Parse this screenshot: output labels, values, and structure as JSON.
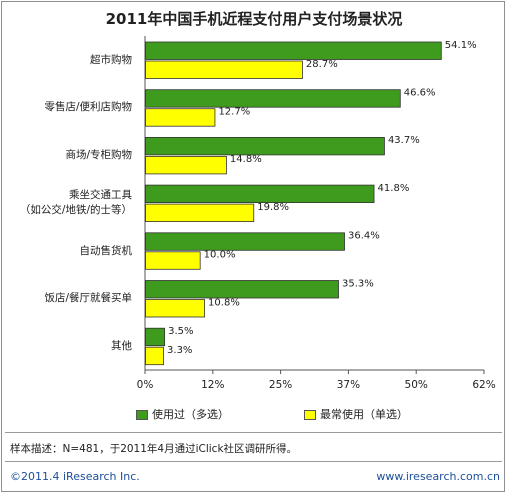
{
  "chart_data": {
    "type": "bar",
    "orientation": "horizontal",
    "title": "2011年中国手机近程支付用户支付场景状况",
    "categories": [
      [
        "超市购物"
      ],
      [
        "零售店/便利店购物"
      ],
      [
        "商场/专柜购物"
      ],
      [
        "乘坐交通工具",
        "（如公交/地铁/的士等）"
      ],
      [
        "自动售货机"
      ],
      [
        "饭店/餐厅就餐买单"
      ],
      [
        "其他"
      ]
    ],
    "series": [
      {
        "name": "使用过（多选）",
        "color": "#3e9b1e",
        "values": [
          54.1,
          46.6,
          43.7,
          41.8,
          36.4,
          35.3,
          3.5
        ]
      },
      {
        "name": "最常使用（单选）",
        "color": "#ffff00",
        "values": [
          28.7,
          12.7,
          14.8,
          19.8,
          10.0,
          10.8,
          3.3
        ]
      }
    ],
    "value_labels": [
      [
        "54.1%",
        "46.6%",
        "43.7%",
        "41.8%",
        "36.4%",
        "35.3%",
        "3.5%"
      ],
      [
        "28.7%",
        "12.7%",
        "14.8%",
        "19.8%",
        "10.0%",
        "10.8%",
        "3.3%"
      ]
    ],
    "xlim": [
      0,
      62
    ],
    "xticks": [
      0,
      12.4,
      24.8,
      37.2,
      49.6,
      62
    ],
    "xtick_labels": [
      "0%",
      "12%",
      "25%",
      "37%",
      "50%",
      "62%"
    ],
    "grid": false,
    "legend_placement": "bottom"
  },
  "legend": {
    "used_label": "使用过（多选）",
    "most_label": "最常使用（单选）"
  },
  "note": "样本描述：N=481，于2011年4月通过iClick社区调研所得。",
  "footer": {
    "copyright": "©2011.4 iResearch Inc.",
    "url": "www.iresearch.com.cn"
  }
}
